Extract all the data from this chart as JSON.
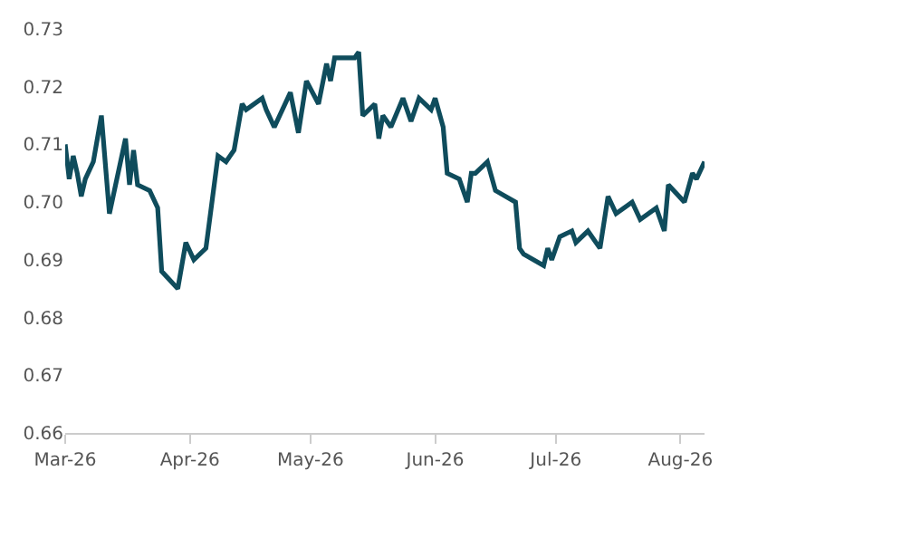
{
  "chart_data": {
    "type": "line",
    "x": [
      "2026-03-01",
      "2026-03-02",
      "2026-03-03",
      "2026-03-04",
      "2026-03-05",
      "2026-03-06",
      "2026-03-08",
      "2026-03-10",
      "2026-03-12",
      "2026-03-16",
      "2026-03-17",
      "2026-03-18",
      "2026-03-19",
      "2026-03-22",
      "2026-03-24",
      "2026-03-25",
      "2026-03-29",
      "2026-03-31",
      "2026-04-02",
      "2026-04-05",
      "2026-04-08",
      "2026-04-10",
      "2026-04-12",
      "2026-04-14",
      "2026-04-15",
      "2026-04-19",
      "2026-04-20",
      "2026-04-22",
      "2026-04-26",
      "2026-04-28",
      "2026-04-30",
      "2026-05-03",
      "2026-05-05",
      "2026-05-06",
      "2026-05-07",
      "2026-05-11",
      "2026-05-12",
      "2026-05-13",
      "2026-05-14",
      "2026-05-17",
      "2026-05-18",
      "2026-05-19",
      "2026-05-21",
      "2026-05-24",
      "2026-05-26",
      "2026-05-28",
      "2026-05-31",
      "2026-06-01",
      "2026-06-03",
      "2026-06-04",
      "2026-06-07",
      "2026-06-09",
      "2026-06-10",
      "2026-06-11",
      "2026-06-14",
      "2026-06-16",
      "2026-06-21",
      "2026-06-22",
      "2026-06-23",
      "2026-06-28",
      "2026-06-29",
      "2026-06-30",
      "2026-07-02",
      "2026-07-05",
      "2026-07-06",
      "2026-07-09",
      "2026-07-12",
      "2026-07-14",
      "2026-07-16",
      "2026-07-20",
      "2026-07-22",
      "2026-07-26",
      "2026-07-28",
      "2026-07-29",
      "2026-08-02",
      "2026-08-04",
      "2026-08-05",
      "2026-08-07"
    ],
    "series": [
      {
        "color": "#0f4c5c",
        "values": [
          0.71,
          0.704,
          0.708,
          0.705,
          0.701,
          0.704,
          0.707,
          0.715,
          0.698,
          0.711,
          0.703,
          0.709,
          0.703,
          0.702,
          0.699,
          0.688,
          0.685,
          0.693,
          0.69,
          0.692,
          0.708,
          0.707,
          0.709,
          0.717,
          0.716,
          0.718,
          0.716,
          0.713,
          0.719,
          0.712,
          0.721,
          0.717,
          0.724,
          0.721,
          0.725,
          0.725,
          0.725,
          0.726,
          0.715,
          0.717,
          0.711,
          0.715,
          0.713,
          0.718,
          0.714,
          0.718,
          0.716,
          0.718,
          0.713,
          0.705,
          0.704,
          0.7,
          0.705,
          0.705,
          0.707,
          0.702,
          0.7,
          0.692,
          0.691,
          0.689,
          0.692,
          0.69,
          0.694,
          0.695,
          0.693,
          0.695,
          0.692,
          0.701,
          0.698,
          0.7,
          0.697,
          0.699,
          0.695,
          0.703,
          0.7,
          0.705,
          0.704,
          0.707
        ]
      }
    ],
    "xlim": [
      "2026-03-01",
      "2026-08-07"
    ],
    "xticks": [
      {
        "value": "2026-03-01",
        "label": "Mar-26"
      },
      {
        "value": "2026-04-01",
        "label": "Apr-26"
      },
      {
        "value": "2026-05-01",
        "label": "May-26"
      },
      {
        "value": "2026-06-01",
        "label": "Jun-26"
      },
      {
        "value": "2026-07-01",
        "label": "Jul-26"
      },
      {
        "value": "2026-08-01",
        "label": "Aug-26"
      }
    ],
    "ylim": [
      0.66,
      0.73
    ],
    "yticks": [
      {
        "value": 0.66,
        "label": "0.66"
      },
      {
        "value": 0.67,
        "label": "0.67"
      },
      {
        "value": 0.68,
        "label": "0.68"
      },
      {
        "value": 0.69,
        "label": "0.69"
      },
      {
        "value": 0.7,
        "label": "0.70"
      },
      {
        "value": 0.71,
        "label": "0.71"
      },
      {
        "value": 0.72,
        "label": "0.72"
      },
      {
        "value": 0.73,
        "label": "0.73"
      }
    ],
    "marker": "none",
    "line_style": "solid"
  }
}
